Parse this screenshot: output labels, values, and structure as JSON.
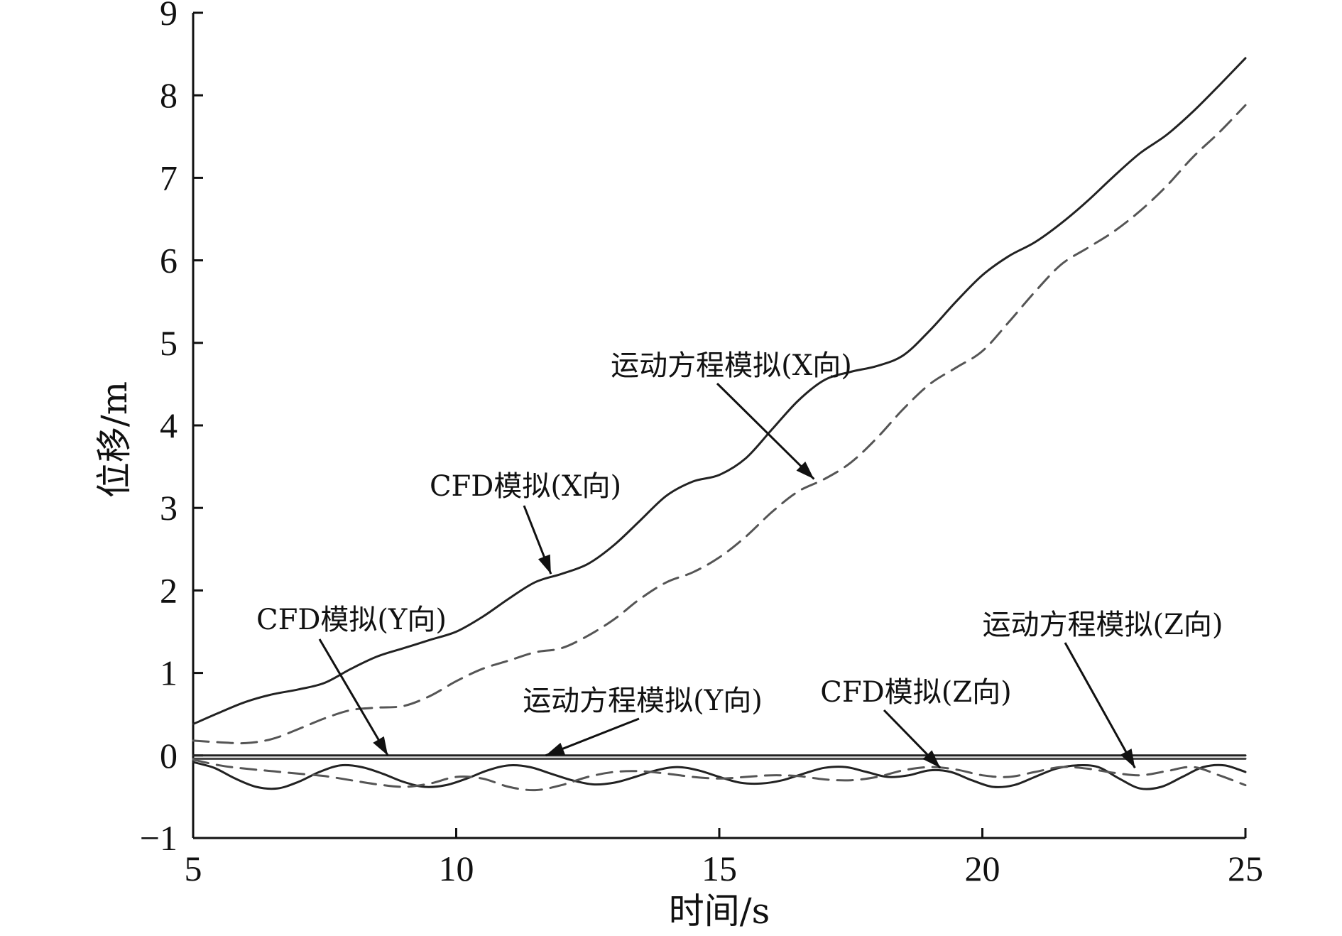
{
  "chart_data": {
    "type": "line",
    "title": "",
    "xlabel": "时间/s",
    "ylabel": "位移/m",
    "xlim": [
      5,
      25
    ],
    "ylim": [
      -1,
      9
    ],
    "xticks": [
      "5",
      "10",
      "15",
      "20",
      "25"
    ],
    "yticks": [
      "−1",
      "0",
      "1",
      "2",
      "3",
      "4",
      "5",
      "6",
      "7",
      "8",
      "9"
    ],
    "grid": false,
    "series": [
      {
        "name": "CFD模拟(X向)",
        "style": "solid",
        "color": "#222222",
        "x": [
          5,
          5.5,
          6,
          6.5,
          7,
          7.5,
          8,
          8.5,
          9,
          9.5,
          10,
          10.5,
          11,
          11.5,
          12,
          12.5,
          13,
          13.5,
          14,
          14.5,
          15,
          15.5,
          16,
          16.5,
          17,
          17.5,
          18,
          18.5,
          19,
          19.5,
          20,
          20.5,
          21,
          21.5,
          22,
          22.5,
          23,
          23.5,
          24,
          24.5,
          25
        ],
        "y": [
          0.38,
          0.52,
          0.65,
          0.74,
          0.8,
          0.88,
          1.05,
          1.2,
          1.3,
          1.4,
          1.5,
          1.68,
          1.9,
          2.1,
          2.2,
          2.32,
          2.55,
          2.85,
          3.15,
          3.32,
          3.4,
          3.6,
          3.95,
          4.3,
          4.55,
          4.65,
          4.72,
          4.85,
          5.15,
          5.5,
          5.82,
          6.05,
          6.22,
          6.45,
          6.72,
          7.02,
          7.3,
          7.52,
          7.8,
          8.12,
          8.45
        ]
      },
      {
        "name": "运动方程模拟(X向)",
        "style": "dashed",
        "color": "#555555",
        "x": [
          5,
          5.5,
          6,
          6.5,
          7,
          7.5,
          8,
          8.5,
          9,
          9.5,
          10,
          10.5,
          11,
          11.5,
          12,
          12.5,
          13,
          13.5,
          14,
          14.5,
          15,
          15.5,
          16,
          16.5,
          17,
          17.5,
          18,
          18.5,
          19,
          19.5,
          20,
          20.5,
          21,
          21.5,
          22,
          22.5,
          23,
          23.5,
          24,
          24.5,
          25
        ],
        "y": [
          0.18,
          0.16,
          0.15,
          0.2,
          0.32,
          0.45,
          0.55,
          0.58,
          0.6,
          0.72,
          0.9,
          1.05,
          1.15,
          1.25,
          1.3,
          1.45,
          1.65,
          1.9,
          2.1,
          2.22,
          2.4,
          2.65,
          2.95,
          3.2,
          3.35,
          3.55,
          3.85,
          4.2,
          4.5,
          4.7,
          4.9,
          5.25,
          5.62,
          5.95,
          6.15,
          6.35,
          6.6,
          6.9,
          7.25,
          7.55,
          7.88
        ]
      },
      {
        "name": "CFD模拟(Y向)",
        "style": "solid",
        "color": "#222222",
        "x": [
          5,
          25
        ],
        "y": [
          0.0,
          0.0
        ]
      },
      {
        "name": "运动方程模拟(Y向)",
        "style": "solid",
        "color": "#444444",
        "x": [
          5,
          25
        ],
        "y": [
          -0.04,
          -0.04
        ]
      },
      {
        "name": "CFD模拟(Z向)",
        "style": "solid",
        "color": "#222222",
        "x": [
          5,
          5.4,
          5.8,
          6.2,
          6.6,
          7.0,
          7.4,
          7.8,
          8.2,
          8.6,
          9.0,
          9.4,
          9.8,
          10.2,
          10.6,
          11.0,
          11.4,
          11.8,
          12.2,
          12.6,
          13.0,
          13.4,
          13.8,
          14.2,
          14.6,
          15.0,
          15.4,
          15.8,
          16.2,
          16.6,
          17.0,
          17.4,
          17.8,
          18.2,
          18.6,
          19.0,
          19.4,
          19.8,
          20.2,
          20.6,
          21.0,
          21.4,
          21.8,
          22.2,
          22.6,
          23.0,
          23.4,
          23.8,
          24.2,
          24.6,
          25.0
        ],
        "y": [
          -0.08,
          -0.15,
          -0.28,
          -0.38,
          -0.4,
          -0.32,
          -0.2,
          -0.12,
          -0.14,
          -0.22,
          -0.32,
          -0.38,
          -0.36,
          -0.28,
          -0.18,
          -0.12,
          -0.14,
          -0.22,
          -0.3,
          -0.35,
          -0.33,
          -0.26,
          -0.18,
          -0.14,
          -0.18,
          -0.26,
          -0.33,
          -0.34,
          -0.3,
          -0.22,
          -0.15,
          -0.14,
          -0.2,
          -0.26,
          -0.24,
          -0.18,
          -0.2,
          -0.3,
          -0.38,
          -0.36,
          -0.26,
          -0.16,
          -0.12,
          -0.14,
          -0.28,
          -0.4,
          -0.38,
          -0.26,
          -0.14,
          -0.12,
          -0.2
        ]
      },
      {
        "name": "运动方程模拟(Z向)",
        "style": "dashed",
        "color": "#555555",
        "x": [
          5,
          5.5,
          6,
          6.5,
          7,
          7.5,
          8,
          8.5,
          9,
          9.5,
          10,
          10.5,
          11,
          11.5,
          12,
          12.5,
          13,
          13.5,
          14,
          14.5,
          15,
          15.5,
          16,
          16.5,
          17,
          17.5,
          18,
          18.5,
          19,
          19.5,
          20,
          20.5,
          21,
          21.5,
          22,
          22.5,
          23,
          23.5,
          24,
          24.5,
          25
        ],
        "y": [
          -0.05,
          -0.12,
          -0.16,
          -0.19,
          -0.22,
          -0.25,
          -0.3,
          -0.35,
          -0.38,
          -0.34,
          -0.26,
          -0.28,
          -0.38,
          -0.42,
          -0.36,
          -0.26,
          -0.2,
          -0.19,
          -0.22,
          -0.26,
          -0.28,
          -0.26,
          -0.24,
          -0.25,
          -0.29,
          -0.3,
          -0.26,
          -0.18,
          -0.14,
          -0.17,
          -0.24,
          -0.26,
          -0.2,
          -0.14,
          -0.16,
          -0.21,
          -0.24,
          -0.19,
          -0.14,
          -0.24,
          -0.36
        ]
      }
    ],
    "annotations": [
      {
        "text": "运动方程模拟(X向)",
        "x": 16.8,
        "y": 3.35
      },
      {
        "text": "CFD模拟(X向)",
        "x": 11.8,
        "y": 2.2
      },
      {
        "text": "CFD模拟(Y向)",
        "x": 8.7,
        "y": 0.0
      },
      {
        "text": "运动方程模拟(Y向)",
        "x": 11.7,
        "y": 0.0
      },
      {
        "text": "CFD模拟(Z向)",
        "x": 19.2,
        "y": -0.15
      },
      {
        "text": "运动方程模拟(Z向)",
        "x": 22.9,
        "y": -0.15
      }
    ]
  }
}
